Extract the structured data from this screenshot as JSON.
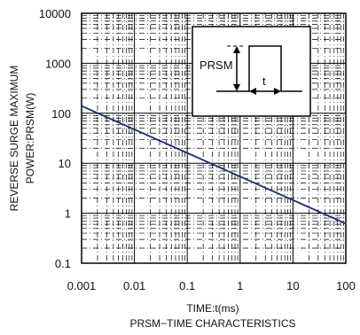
{
  "chart_data": {
    "type": "line",
    "x_scale": "log",
    "y_scale": "log",
    "xlim": [
      0.001,
      100
    ],
    "ylim": [
      0.1,
      10000
    ],
    "x_ticks": [
      "0.001",
      "0.01",
      "0.1",
      "1",
      "10",
      "100"
    ],
    "y_ticks": [
      "10000",
      "1000",
      "100",
      "10",
      "1",
      "0.1"
    ],
    "xlabel": "TIME:t(ms)",
    "ylabel_line1": "REVERSE   SURGE MAXIMUM",
    "ylabel_line2": "POWER:PRSM(W)",
    "caption": "PRSM−TIME CHARACTERISTICS",
    "grid": true,
    "line_color": "#1f2d6e",
    "series": [
      {
        "x": [
          0.001,
          100
        ],
        "y": [
          140,
          0.62
        ]
      }
    ],
    "inset": {
      "label_prsm": "PRSM",
      "label_t": "t"
    }
  }
}
